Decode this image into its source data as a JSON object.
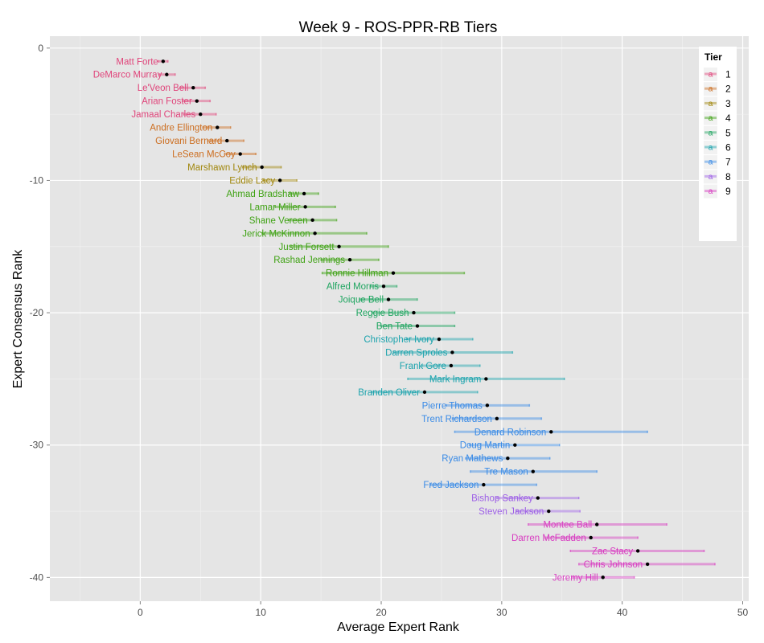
{
  "chart_data": {
    "type": "errorbar-dot",
    "title": "Week 9 - ROS-PPR-RB Tiers",
    "xlabel": "Average Expert Rank",
    "ylabel": "Expert Consensus Rank",
    "xlim": [
      -7.5,
      50.5
    ],
    "ylim": [
      -41.8,
      0.9
    ],
    "x_ticks": [
      0,
      10,
      20,
      30,
      40,
      50
    ],
    "y_ticks": [
      0,
      -10,
      -20,
      -30,
      -40
    ],
    "legend": {
      "title": "Tier",
      "key_glyph": "a",
      "placement": "top-right",
      "tiers": [
        "1",
        "2",
        "3",
        "4",
        "5",
        "6",
        "7",
        "8",
        "9"
      ]
    },
    "tier_colors": {
      "1": "#e0457b",
      "2": "#cc6d1f",
      "3": "#a0860b",
      "4": "#3fa214",
      "5": "#1fa560",
      "6": "#1ba3ad",
      "7": "#3a8be6",
      "8": "#9d5fe6",
      "9": "#d83cc1"
    },
    "players": [
      {
        "name": "Matt Forte",
        "rank": 1,
        "avg": 1.9,
        "min": 1.5,
        "max": 2.3,
        "tier": "1"
      },
      {
        "name": "DeMarco Murray",
        "rank": 2,
        "avg": 2.2,
        "min": 1.6,
        "max": 2.9,
        "tier": "1"
      },
      {
        "name": "Le'Veon Bell",
        "rank": 3,
        "avg": 4.4,
        "min": 3.3,
        "max": 5.4,
        "tier": "1"
      },
      {
        "name": "Arian Foster",
        "rank": 4,
        "avg": 4.7,
        "min": 3.5,
        "max": 5.8,
        "tier": "1"
      },
      {
        "name": "Jamaal Charles",
        "rank": 5,
        "avg": 5.0,
        "min": 3.6,
        "max": 6.3,
        "tier": "1"
      },
      {
        "name": "Andre Ellington",
        "rank": 6,
        "avg": 6.4,
        "min": 5.2,
        "max": 7.5,
        "tier": "2"
      },
      {
        "name": "Giovani Bernard",
        "rank": 7,
        "avg": 7.2,
        "min": 5.6,
        "max": 8.6,
        "tier": "2"
      },
      {
        "name": "LeSean McCoy",
        "rank": 8,
        "avg": 8.3,
        "min": 7.0,
        "max": 9.6,
        "tier": "2"
      },
      {
        "name": "Marshawn Lynch",
        "rank": 9,
        "avg": 10.1,
        "min": 8.5,
        "max": 11.7,
        "tier": "3"
      },
      {
        "name": "Eddie Lacy",
        "rank": 10,
        "avg": 11.6,
        "min": 10.2,
        "max": 13.0,
        "tier": "3"
      },
      {
        "name": "Ahmad Bradshaw",
        "rank": 11,
        "avg": 13.6,
        "min": 12.4,
        "max": 14.8,
        "tier": "4"
      },
      {
        "name": "Lamar Miller",
        "rank": 12,
        "avg": 13.7,
        "min": 11.2,
        "max": 16.2,
        "tier": "4"
      },
      {
        "name": "Shane Vereen",
        "rank": 13,
        "avg": 14.3,
        "min": 12.3,
        "max": 16.3,
        "tier": "4"
      },
      {
        "name": "Jerick McKinnon",
        "rank": 14,
        "avg": 14.5,
        "min": 10.1,
        "max": 18.8,
        "tier": "4"
      },
      {
        "name": "Justin Forsett",
        "rank": 15,
        "avg": 16.5,
        "min": 12.5,
        "max": 20.6,
        "tier": "4"
      },
      {
        "name": "Rashad Jennings",
        "rank": 16,
        "avg": 17.4,
        "min": 15.0,
        "max": 19.8,
        "tier": "4"
      },
      {
        "name": "Ronnie Hillman",
        "rank": 17,
        "avg": 21.0,
        "min": 15.1,
        "max": 26.9,
        "tier": "4"
      },
      {
        "name": "Alfred Morris",
        "rank": 18,
        "avg": 20.2,
        "min": 19.1,
        "max": 21.3,
        "tier": "5"
      },
      {
        "name": "Joique Bell",
        "rank": 19,
        "avg": 20.6,
        "min": 18.2,
        "max": 23.0,
        "tier": "5"
      },
      {
        "name": "Reggie Bush",
        "rank": 20,
        "avg": 22.7,
        "min": 19.3,
        "max": 26.1,
        "tier": "5"
      },
      {
        "name": "Ben Tate",
        "rank": 21,
        "avg": 23.0,
        "min": 20.0,
        "max": 26.1,
        "tier": "5"
      },
      {
        "name": "Christopher Ivory",
        "rank": 22,
        "avg": 24.8,
        "min": 22.1,
        "max": 27.6,
        "tier": "6"
      },
      {
        "name": "Darren Sproles",
        "rank": 23,
        "avg": 25.9,
        "min": 21.0,
        "max": 30.9,
        "tier": "6"
      },
      {
        "name": "Frank Gore",
        "rank": 24,
        "avg": 25.8,
        "min": 23.4,
        "max": 28.2,
        "tier": "6"
      },
      {
        "name": "Mark Ingram",
        "rank": 25,
        "avg": 28.7,
        "min": 22.2,
        "max": 35.2,
        "tier": "6"
      },
      {
        "name": "Branden Oliver",
        "rank": 26,
        "avg": 23.6,
        "min": 19.2,
        "max": 28.0,
        "tier": "6"
      },
      {
        "name": "Pierre Thomas",
        "rank": 27,
        "avg": 28.8,
        "min": 25.4,
        "max": 32.3,
        "tier": "7"
      },
      {
        "name": "Trent Richardson",
        "rank": 28,
        "avg": 29.6,
        "min": 25.9,
        "max": 33.3,
        "tier": "7"
      },
      {
        "name": "Denard Robinson",
        "rank": 29,
        "avg": 34.1,
        "min": 26.1,
        "max": 42.1,
        "tier": "7"
      },
      {
        "name": "Doug Martin",
        "rank": 30,
        "avg": 31.1,
        "min": 27.3,
        "max": 34.8,
        "tier": "7"
      },
      {
        "name": "Ryan Mathews",
        "rank": 31,
        "avg": 30.5,
        "min": 27.0,
        "max": 34.0,
        "tier": "7"
      },
      {
        "name": "Tre Mason",
        "rank": 32,
        "avg": 32.6,
        "min": 27.4,
        "max": 37.9,
        "tier": "7"
      },
      {
        "name": "Fred Jackson",
        "rank": 33,
        "avg": 28.5,
        "min": 24.1,
        "max": 32.9,
        "tier": "7"
      },
      {
        "name": "Bishop Sankey",
        "rank": 34,
        "avg": 33.0,
        "min": 29.6,
        "max": 36.4,
        "tier": "8"
      },
      {
        "name": "Steven Jackson",
        "rank": 35,
        "avg": 33.9,
        "min": 31.2,
        "max": 36.5,
        "tier": "8"
      },
      {
        "name": "Montee Ball",
        "rank": 36,
        "avg": 37.9,
        "min": 32.2,
        "max": 43.7,
        "tier": "9"
      },
      {
        "name": "Darren McFadden",
        "rank": 37,
        "avg": 37.4,
        "min": 33.6,
        "max": 41.3,
        "tier": "9"
      },
      {
        "name": "Zac Stacy",
        "rank": 38,
        "avg": 41.3,
        "min": 35.7,
        "max": 46.8,
        "tier": "9"
      },
      {
        "name": "Chris Johnson",
        "rank": 39,
        "avg": 42.1,
        "min": 36.4,
        "max": 47.7,
        "tier": "9"
      },
      {
        "name": "Jeremy Hill",
        "rank": 40,
        "avg": 38.4,
        "min": 35.9,
        "max": 41.0,
        "tier": "9"
      }
    ]
  }
}
